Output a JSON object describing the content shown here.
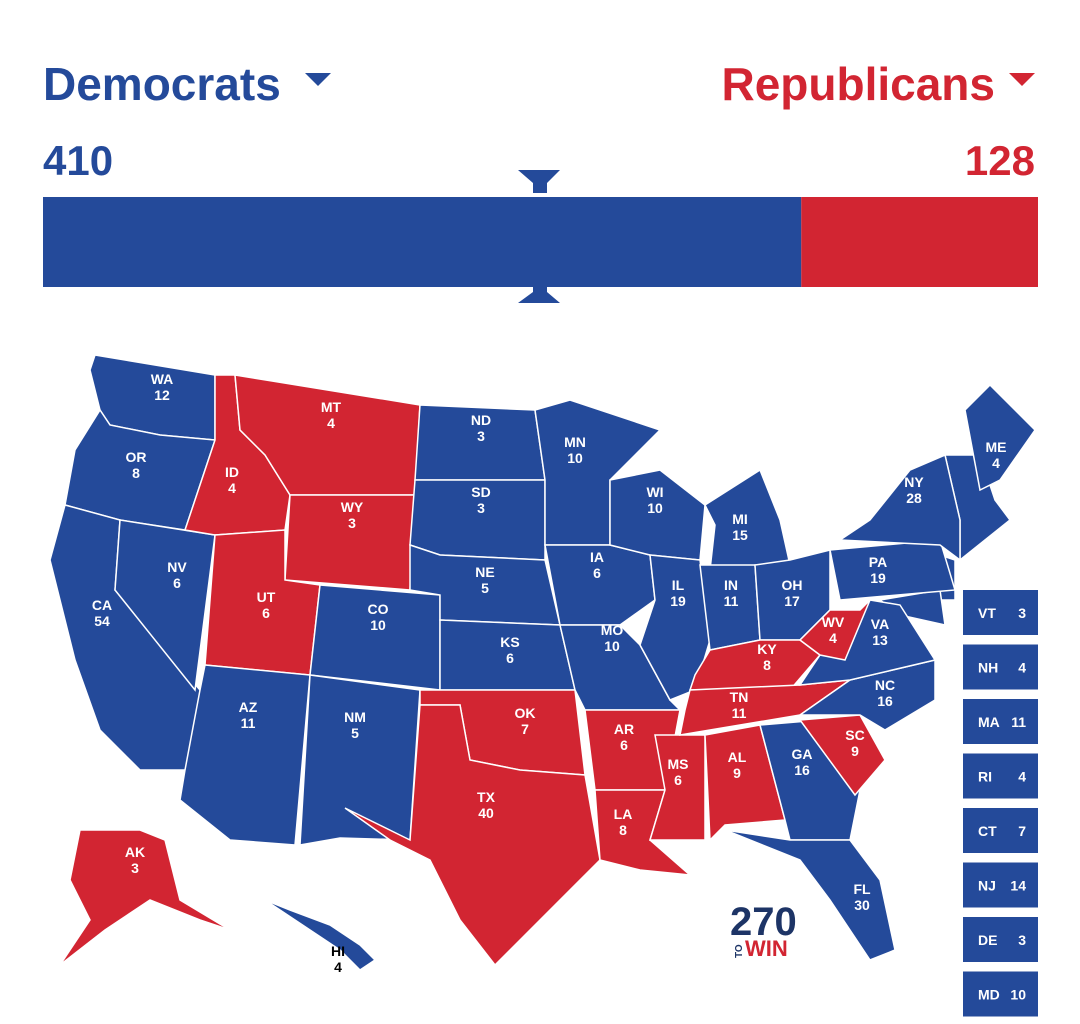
{
  "header": {
    "left": {
      "name": "Democrats",
      "total": 410,
      "color": "#244a9a"
    },
    "right": {
      "name": "Republicans",
      "total": 128,
      "color": "#d22532"
    }
  },
  "parties": {
    "dem": "#244a9a",
    "rep": "#d22532"
  },
  "states": [
    {
      "abbr": "WA",
      "votes": 12,
      "party": "dem"
    },
    {
      "abbr": "OR",
      "votes": 8,
      "party": "dem"
    },
    {
      "abbr": "CA",
      "votes": 54,
      "party": "dem"
    },
    {
      "abbr": "NV",
      "votes": 6,
      "party": "dem"
    },
    {
      "abbr": "ID",
      "votes": 4,
      "party": "rep"
    },
    {
      "abbr": "MT",
      "votes": 4,
      "party": "rep"
    },
    {
      "abbr": "WY",
      "votes": 3,
      "party": "rep"
    },
    {
      "abbr": "UT",
      "votes": 6,
      "party": "rep"
    },
    {
      "abbr": "CO",
      "votes": 10,
      "party": "dem"
    },
    {
      "abbr": "AZ",
      "votes": 11,
      "party": "dem"
    },
    {
      "abbr": "NM",
      "votes": 5,
      "party": "dem"
    },
    {
      "abbr": "ND",
      "votes": 3,
      "party": "dem"
    },
    {
      "abbr": "SD",
      "votes": 3,
      "party": "dem"
    },
    {
      "abbr": "NE",
      "votes": 5,
      "party": "dem"
    },
    {
      "abbr": "KS",
      "votes": 6,
      "party": "dem"
    },
    {
      "abbr": "OK",
      "votes": 7,
      "party": "rep"
    },
    {
      "abbr": "TX",
      "votes": 40,
      "party": "rep"
    },
    {
      "abbr": "MN",
      "votes": 10,
      "party": "dem"
    },
    {
      "abbr": "IA",
      "votes": 6,
      "party": "dem"
    },
    {
      "abbr": "MO",
      "votes": 10,
      "party": "dem"
    },
    {
      "abbr": "AR",
      "votes": 6,
      "party": "rep"
    },
    {
      "abbr": "LA",
      "votes": 8,
      "party": "rep"
    },
    {
      "abbr": "WI",
      "votes": 10,
      "party": "dem"
    },
    {
      "abbr": "IL",
      "votes": 19,
      "party": "dem"
    },
    {
      "abbr": "MS",
      "votes": 6,
      "party": "rep"
    },
    {
      "abbr": "MI",
      "votes": 15,
      "party": "dem"
    },
    {
      "abbr": "IN",
      "votes": 11,
      "party": "dem"
    },
    {
      "abbr": "OH",
      "votes": 17,
      "party": "dem"
    },
    {
      "abbr": "KY",
      "votes": 8,
      "party": "rep"
    },
    {
      "abbr": "TN",
      "votes": 11,
      "party": "rep"
    },
    {
      "abbr": "AL",
      "votes": 9,
      "party": "rep"
    },
    {
      "abbr": "GA",
      "votes": 16,
      "party": "dem"
    },
    {
      "abbr": "FL",
      "votes": 30,
      "party": "dem"
    },
    {
      "abbr": "SC",
      "votes": 9,
      "party": "rep"
    },
    {
      "abbr": "NC",
      "votes": 16,
      "party": "dem"
    },
    {
      "abbr": "VA",
      "votes": 13,
      "party": "dem"
    },
    {
      "abbr": "WV",
      "votes": 4,
      "party": "rep"
    },
    {
      "abbr": "PA",
      "votes": 19,
      "party": "dem"
    },
    {
      "abbr": "NY",
      "votes": 28,
      "party": "dem"
    },
    {
      "abbr": "ME",
      "votes": 4,
      "party": "dem"
    },
    {
      "abbr": "AK",
      "votes": 3,
      "party": "rep"
    },
    {
      "abbr": "HI",
      "votes": 4,
      "party": "dem"
    }
  ],
  "small_states": [
    {
      "abbr": "VT",
      "votes": 3,
      "party": "dem"
    },
    {
      "abbr": "NH",
      "votes": 4,
      "party": "dem"
    },
    {
      "abbr": "MA",
      "votes": 11,
      "party": "dem"
    },
    {
      "abbr": "RI",
      "votes": 4,
      "party": "dem"
    },
    {
      "abbr": "CT",
      "votes": 7,
      "party": "dem"
    },
    {
      "abbr": "NJ",
      "votes": 14,
      "party": "dem"
    },
    {
      "abbr": "DE",
      "votes": 3,
      "party": "dem"
    },
    {
      "abbr": "MD",
      "votes": 10,
      "party": "dem"
    }
  ],
  "logo": {
    "number": "270",
    "small": "TO",
    "word": "WIN"
  }
}
